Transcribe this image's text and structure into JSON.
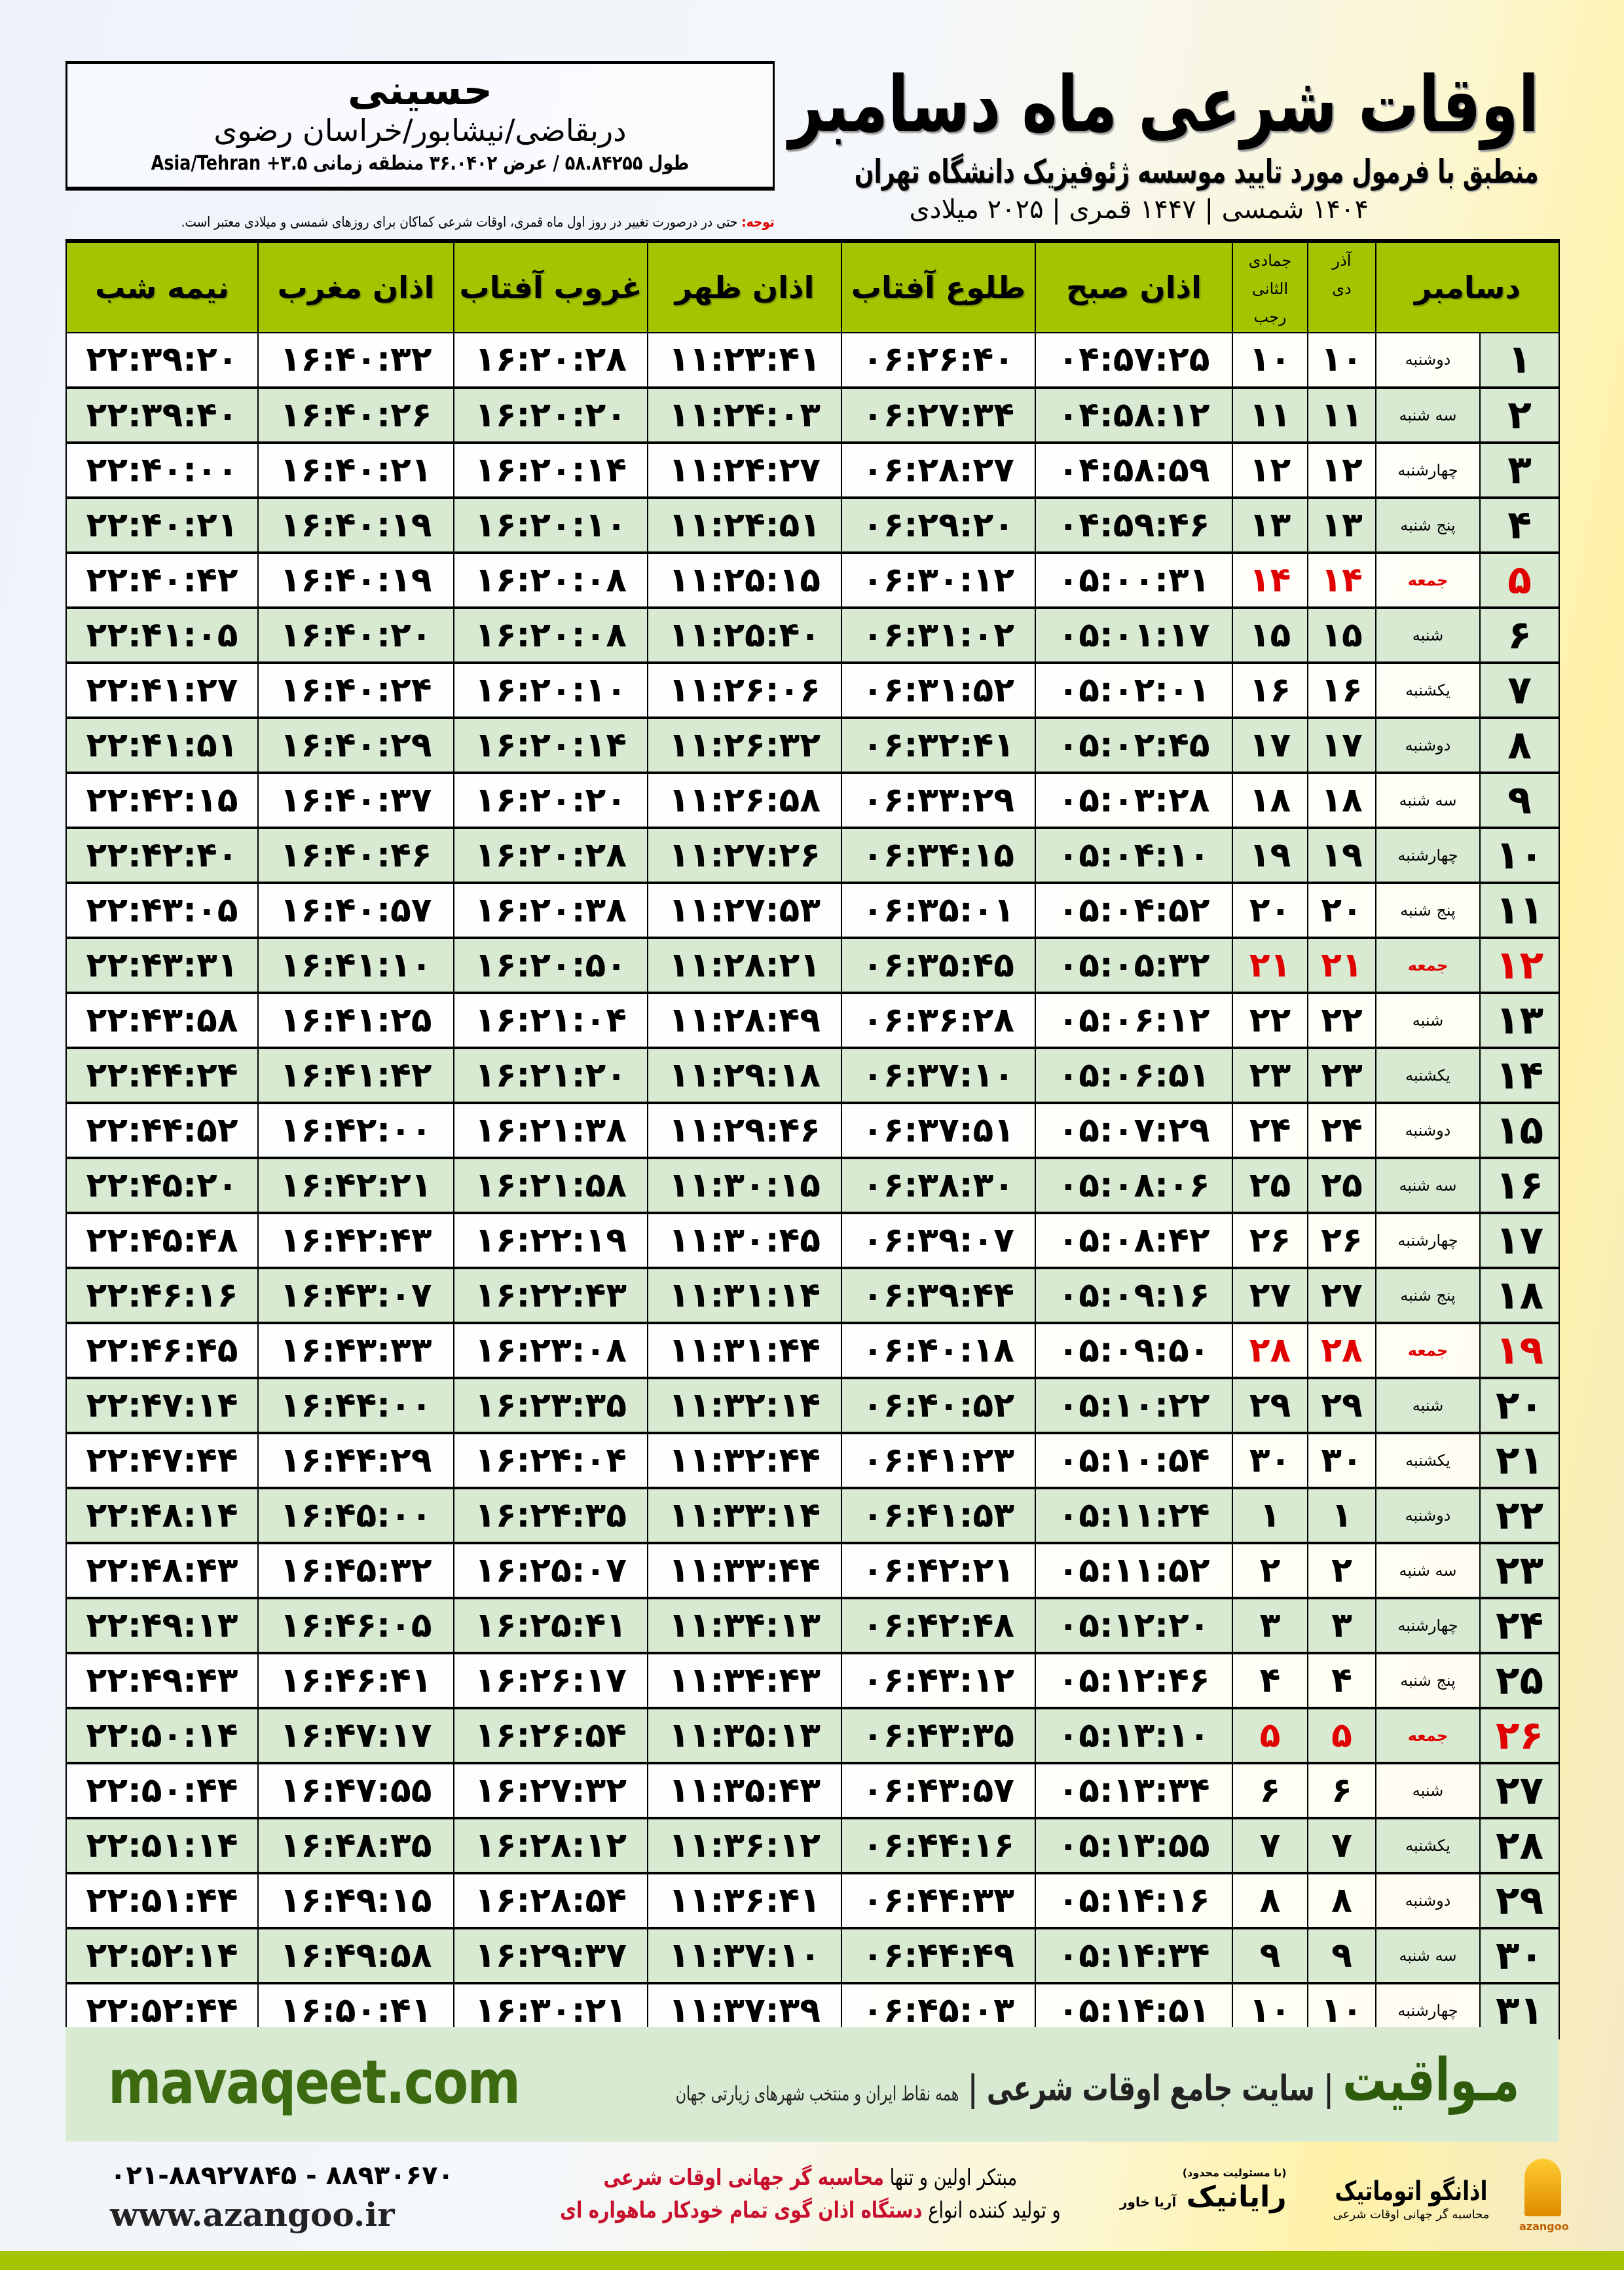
{
  "header": {
    "title": "اوقات شرعی ماه دسامبر",
    "subtitle": "منطبق با فرمول مورد تایید موسسه ژئوفیزیک دانشگاه تهران",
    "dateline": "۱۴۰۴ شمسی | ۱۴۴۷ قمری | ۲۰۲۵ میلادی"
  },
  "location": {
    "name": "حسینی",
    "path": "دربقاضی/نیشابور/خراسان رضوی",
    "coords": "طول ۵۸.۸۴۲۵۵ / عرض ۳۶.۰۴۰۲ منطقه زمانی ۳.۵+ Asia/Tehran"
  },
  "note": {
    "label": "توجه:",
    "text": " حتی در درصورت تغییر در روز اول ماه قمری، اوقات شرعی کماکان برای روزهای شمسی و میلادی معتبر است."
  },
  "columns": {
    "day": "دسامبر",
    "dey_top": "آذر",
    "dey": "دی",
    "rajab_top": "جمادی الثانی",
    "rajab": "رجب",
    "sobh": "اذان صبح",
    "tolu": "طلوع آفتاب",
    "zohr": "اذان ظهر",
    "ghorub": "غروب آفتاب",
    "maghrib": "اذان مغرب",
    "nimeh": "نیمه شب"
  },
  "colors": {
    "header_green": "#a5c400",
    "row_green": "#d9ead3",
    "friday_red": "#e00000",
    "brand_green": "#3b6a10"
  },
  "rows": [
    {
      "d": "۱",
      "w": "دوشنبه",
      "dey": "۱۰",
      "rajab": "۱۰",
      "t": [
        "۰۴:۵۷:۲۵",
        "۰۶:۲۶:۴۰",
        "۱۱:۲۳:۴۱",
        "۱۶:۲۰:۲۸",
        "۱۶:۴۰:۳۲",
        "۲۲:۳۹:۲۰"
      ]
    },
    {
      "d": "۲",
      "w": "سه شنبه",
      "dey": "۱۱",
      "rajab": "۱۱",
      "t": [
        "۰۴:۵۸:۱۲",
        "۰۶:۲۷:۳۴",
        "۱۱:۲۴:۰۳",
        "۱۶:۲۰:۲۰",
        "۱۶:۴۰:۲۶",
        "۲۲:۳۹:۴۰"
      ]
    },
    {
      "d": "۳",
      "w": "چهارشنبه",
      "dey": "۱۲",
      "rajab": "۱۲",
      "t": [
        "۰۴:۵۸:۵۹",
        "۰۶:۲۸:۲۷",
        "۱۱:۲۴:۲۷",
        "۱۶:۲۰:۱۴",
        "۱۶:۴۰:۲۱",
        "۲۲:۴۰:۰۰"
      ]
    },
    {
      "d": "۴",
      "w": "پنج شنبه",
      "dey": "۱۳",
      "rajab": "۱۳",
      "t": [
        "۰۴:۵۹:۴۶",
        "۰۶:۲۹:۲۰",
        "۱۱:۲۴:۵۱",
        "۱۶:۲۰:۱۰",
        "۱۶:۴۰:۱۹",
        "۲۲:۴۰:۲۱"
      ]
    },
    {
      "d": "۵",
      "w": "جمعه",
      "dey": "۱۴",
      "rajab": "۱۴",
      "fri": true,
      "t": [
        "۰۵:۰۰:۳۱",
        "۰۶:۳۰:۱۲",
        "۱۱:۲۵:۱۵",
        "۱۶:۲۰:۰۸",
        "۱۶:۴۰:۱۹",
        "۲۲:۴۰:۴۲"
      ]
    },
    {
      "d": "۶",
      "w": "شنبه",
      "dey": "۱۵",
      "rajab": "۱۵",
      "t": [
        "۰۵:۰۱:۱۷",
        "۰۶:۳۱:۰۲",
        "۱۱:۲۵:۴۰",
        "۱۶:۲۰:۰۸",
        "۱۶:۴۰:۲۰",
        "۲۲:۴۱:۰۵"
      ]
    },
    {
      "d": "۷",
      "w": "یکشنبه",
      "dey": "۱۶",
      "rajab": "۱۶",
      "t": [
        "۰۵:۰۲:۰۱",
        "۰۶:۳۱:۵۲",
        "۱۱:۲۶:۰۶",
        "۱۶:۲۰:۱۰",
        "۱۶:۴۰:۲۴",
        "۲۲:۴۱:۲۷"
      ]
    },
    {
      "d": "۸",
      "w": "دوشنبه",
      "dey": "۱۷",
      "rajab": "۱۷",
      "t": [
        "۰۵:۰۲:۴۵",
        "۰۶:۳۲:۴۱",
        "۱۱:۲۶:۳۲",
        "۱۶:۲۰:۱۴",
        "۱۶:۴۰:۲۹",
        "۲۲:۴۱:۵۱"
      ]
    },
    {
      "d": "۹",
      "w": "سه شنبه",
      "dey": "۱۸",
      "rajab": "۱۸",
      "t": [
        "۰۵:۰۳:۲۸",
        "۰۶:۳۳:۲۹",
        "۱۱:۲۶:۵۸",
        "۱۶:۲۰:۲۰",
        "۱۶:۴۰:۳۷",
        "۲۲:۴۲:۱۵"
      ]
    },
    {
      "d": "۱۰",
      "w": "چهارشنبه",
      "dey": "۱۹",
      "rajab": "۱۹",
      "t": [
        "۰۵:۰۴:۱۰",
        "۰۶:۳۴:۱۵",
        "۱۱:۲۷:۲۶",
        "۱۶:۲۰:۲۸",
        "۱۶:۴۰:۴۶",
        "۲۲:۴۲:۴۰"
      ]
    },
    {
      "d": "۱۱",
      "w": "پنج شنبه",
      "dey": "۲۰",
      "rajab": "۲۰",
      "t": [
        "۰۵:۰۴:۵۲",
        "۰۶:۳۵:۰۱",
        "۱۱:۲۷:۵۳",
        "۱۶:۲۰:۳۸",
        "۱۶:۴۰:۵۷",
        "۲۲:۴۳:۰۵"
      ]
    },
    {
      "d": "۱۲",
      "w": "جمعه",
      "dey": "۲۱",
      "rajab": "۲۱",
      "fri": true,
      "t": [
        "۰۵:۰۵:۳۲",
        "۰۶:۳۵:۴۵",
        "۱۱:۲۸:۲۱",
        "۱۶:۲۰:۵۰",
        "۱۶:۴۱:۱۰",
        "۲۲:۴۳:۳۱"
      ]
    },
    {
      "d": "۱۳",
      "w": "شنبه",
      "dey": "۲۲",
      "rajab": "۲۲",
      "t": [
        "۰۵:۰۶:۱۲",
        "۰۶:۳۶:۲۸",
        "۱۱:۲۸:۴۹",
        "۱۶:۲۱:۰۴",
        "۱۶:۴۱:۲۵",
        "۲۲:۴۳:۵۸"
      ]
    },
    {
      "d": "۱۴",
      "w": "یکشنبه",
      "dey": "۲۳",
      "rajab": "۲۳",
      "t": [
        "۰۵:۰۶:۵۱",
        "۰۶:۳۷:۱۰",
        "۱۱:۲۹:۱۸",
        "۱۶:۲۱:۲۰",
        "۱۶:۴۱:۴۲",
        "۲۲:۴۴:۲۴"
      ]
    },
    {
      "d": "۱۵",
      "w": "دوشنبه",
      "dey": "۲۴",
      "rajab": "۲۴",
      "t": [
        "۰۵:۰۷:۲۹",
        "۰۶:۳۷:۵۱",
        "۱۱:۲۹:۴۶",
        "۱۶:۲۱:۳۸",
        "۱۶:۴۲:۰۰",
        "۲۲:۴۴:۵۲"
      ]
    },
    {
      "d": "۱۶",
      "w": "سه شنبه",
      "dey": "۲۵",
      "rajab": "۲۵",
      "t": [
        "۰۵:۰۸:۰۶",
        "۰۶:۳۸:۳۰",
        "۱۱:۳۰:۱۵",
        "۱۶:۲۱:۵۸",
        "۱۶:۴۲:۲۱",
        "۲۲:۴۵:۲۰"
      ]
    },
    {
      "d": "۱۷",
      "w": "چهارشنبه",
      "dey": "۲۶",
      "rajab": "۲۶",
      "t": [
        "۰۵:۰۸:۴۲",
        "۰۶:۳۹:۰۷",
        "۱۱:۳۰:۴۵",
        "۱۶:۲۲:۱۹",
        "۱۶:۴۲:۴۳",
        "۲۲:۴۵:۴۸"
      ]
    },
    {
      "d": "۱۸",
      "w": "پنج شنبه",
      "dey": "۲۷",
      "rajab": "۲۷",
      "t": [
        "۰۵:۰۹:۱۶",
        "۰۶:۳۹:۴۴",
        "۱۱:۳۱:۱۴",
        "۱۶:۲۲:۴۳",
        "۱۶:۴۳:۰۷",
        "۲۲:۴۶:۱۶"
      ]
    },
    {
      "d": "۱۹",
      "w": "جمعه",
      "dey": "۲۸",
      "rajab": "۲۸",
      "fri": true,
      "t": [
        "۰۵:۰۹:۵۰",
        "۰۶:۴۰:۱۸",
        "۱۱:۳۱:۴۴",
        "۱۶:۲۳:۰۸",
        "۱۶:۴۳:۳۳",
        "۲۲:۴۶:۴۵"
      ]
    },
    {
      "d": "۲۰",
      "w": "شنبه",
      "dey": "۲۹",
      "rajab": "۲۹",
      "t": [
        "۰۵:۱۰:۲۲",
        "۰۶:۴۰:۵۲",
        "۱۱:۳۲:۱۴",
        "۱۶:۲۳:۳۵",
        "۱۶:۴۴:۰۰",
        "۲۲:۴۷:۱۴"
      ]
    },
    {
      "d": "۲۱",
      "w": "یکشنبه",
      "dey": "۳۰",
      "rajab": "۳۰",
      "t": [
        "۰۵:۱۰:۵۴",
        "۰۶:۴۱:۲۳",
        "۱۱:۳۲:۴۴",
        "۱۶:۲۴:۰۴",
        "۱۶:۴۴:۲۹",
        "۲۲:۴۷:۴۴"
      ]
    },
    {
      "d": "۲۲",
      "w": "دوشنبه",
      "dey": "۱",
      "rajab": "۱",
      "t": [
        "۰۵:۱۱:۲۴",
        "۰۶:۴۱:۵۳",
        "۱۱:۳۳:۱۴",
        "۱۶:۲۴:۳۵",
        "۱۶:۴۵:۰۰",
        "۲۲:۴۸:۱۴"
      ]
    },
    {
      "d": "۲۳",
      "w": "سه شنبه",
      "dey": "۲",
      "rajab": "۲",
      "t": [
        "۰۵:۱۱:۵۲",
        "۰۶:۴۲:۲۱",
        "۱۱:۳۳:۴۴",
        "۱۶:۲۵:۰۷",
        "۱۶:۴۵:۳۲",
        "۲۲:۴۸:۴۳"
      ]
    },
    {
      "d": "۲۴",
      "w": "چهارشنبه",
      "dey": "۳",
      "rajab": "۳",
      "t": [
        "۰۵:۱۲:۲۰",
        "۰۶:۴۲:۴۸",
        "۱۱:۳۴:۱۳",
        "۱۶:۲۵:۴۱",
        "۱۶:۴۶:۰۵",
        "۲۲:۴۹:۱۳"
      ]
    },
    {
      "d": "۲۵",
      "w": "پنج شنبه",
      "dey": "۴",
      "rajab": "۴",
      "t": [
        "۰۵:۱۲:۴۶",
        "۰۶:۴۳:۱۲",
        "۱۱:۳۴:۴۳",
        "۱۶:۲۶:۱۷",
        "۱۶:۴۶:۴۱",
        "۲۲:۴۹:۴۳"
      ]
    },
    {
      "d": "۲۶",
      "w": "جمعه",
      "dey": "۵",
      "rajab": "۵",
      "fri": true,
      "t": [
        "۰۵:۱۳:۱۰",
        "۰۶:۴۳:۳۵",
        "۱۱:۳۵:۱۳",
        "۱۶:۲۶:۵۴",
        "۱۶:۴۷:۱۷",
        "۲۲:۵۰:۱۴"
      ]
    },
    {
      "d": "۲۷",
      "w": "شنبه",
      "dey": "۶",
      "rajab": "۶",
      "t": [
        "۰۵:۱۳:۳۴",
        "۰۶:۴۳:۵۷",
        "۱۱:۳۵:۴۳",
        "۱۶:۲۷:۳۲",
        "۱۶:۴۷:۵۵",
        "۲۲:۵۰:۴۴"
      ]
    },
    {
      "d": "۲۸",
      "w": "یکشنبه",
      "dey": "۷",
      "rajab": "۷",
      "t": [
        "۰۵:۱۳:۵۵",
        "۰۶:۴۴:۱۶",
        "۱۱:۳۶:۱۲",
        "۱۶:۲۸:۱۲",
        "۱۶:۴۸:۳۵",
        "۲۲:۵۱:۱۴"
      ]
    },
    {
      "d": "۲۹",
      "w": "دوشنبه",
      "dey": "۸",
      "rajab": "۸",
      "t": [
        "۰۵:۱۴:۱۶",
        "۰۶:۴۴:۳۳",
        "۱۱:۳۶:۴۱",
        "۱۶:۲۸:۵۴",
        "۱۶:۴۹:۱۵",
        "۲۲:۵۱:۴۴"
      ]
    },
    {
      "d": "۳۰",
      "w": "سه شنبه",
      "dey": "۹",
      "rajab": "۹",
      "t": [
        "۰۵:۱۴:۳۴",
        "۰۶:۴۴:۴۹",
        "۱۱:۳۷:۱۰",
        "۱۶:۲۹:۳۷",
        "۱۶:۴۹:۵۸",
        "۲۲:۵۲:۱۴"
      ]
    },
    {
      "d": "۳۱",
      "w": "چهارشنبه",
      "dey": "۱۰",
      "rajab": "۱۰",
      "t": [
        "۰۵:۱۴:۵۱",
        "۰۶:۴۵:۰۳",
        "۱۱:۳۷:۳۹",
        "۱۶:۳۰:۲۱",
        "۱۶:۵۰:۴۱",
        "۲۲:۵۲:۴۴"
      ]
    }
  ],
  "footer": {
    "site": "mavaqeet.com",
    "brand": "مـواقیت",
    "brand_tagline": "سایت جامع اوقات شرعی",
    "brand_sub": "همه نقاط ایران و منتخب شهرهای زیارتی جهان",
    "phone": "۰۲۱-۸۸۹۲۷۸۴۵ - ۸۸۹۳۰۶۷۰",
    "web": "www.azangoo.ir",
    "promo1a": "مبتکر اولین و تنها ",
    "promo1b": "محاسبه گر جهانی اوقات شرعی",
    "promo2a": "و تولید کننده انواع ",
    "promo2b": "دستگاه اذان گوی تمام خودکار ماهواره ای",
    "rayanik_small": "(با مسئولیت محدود)",
    "rayanik": "رایانیک",
    "rayanik_side": "آریا خاور",
    "azangoo": "اذانگو اتوماتیک",
    "azangoo_sub": "محاسبه گر جهانی اوقات شرعی",
    "azangoo_en": "azangoo"
  }
}
